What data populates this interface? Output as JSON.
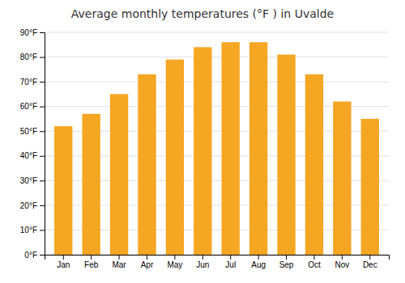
{
  "chart_data": {
    "type": "bar",
    "title": "Average monthly temperatures (°F ) in Uvalde",
    "categories": [
      "Jan",
      "Feb",
      "Mar",
      "Apr",
      "May",
      "Jun",
      "Jul",
      "Aug",
      "Sep",
      "Oct",
      "Nov",
      "Dec"
    ],
    "values": [
      52,
      57,
      65,
      73,
      79,
      84,
      86,
      86,
      81,
      73,
      62,
      55
    ],
    "color": "#F5A623",
    "ylim": [
      0,
      90
    ],
    "yticks": [
      {
        "value": 0,
        "label": "0°F"
      },
      {
        "value": 10,
        "label": "10°F"
      },
      {
        "value": 20,
        "label": "20°F"
      },
      {
        "value": 30,
        "label": "30°F"
      },
      {
        "value": 40,
        "label": "40°F"
      },
      {
        "value": 50,
        "label": "50°F"
      },
      {
        "value": 60,
        "label": "60°F"
      },
      {
        "value": 70,
        "label": "70°F"
      },
      {
        "value": 80,
        "label": "80°F"
      },
      {
        "value": 90,
        "label": "90°F"
      }
    ],
    "grid": true
  }
}
